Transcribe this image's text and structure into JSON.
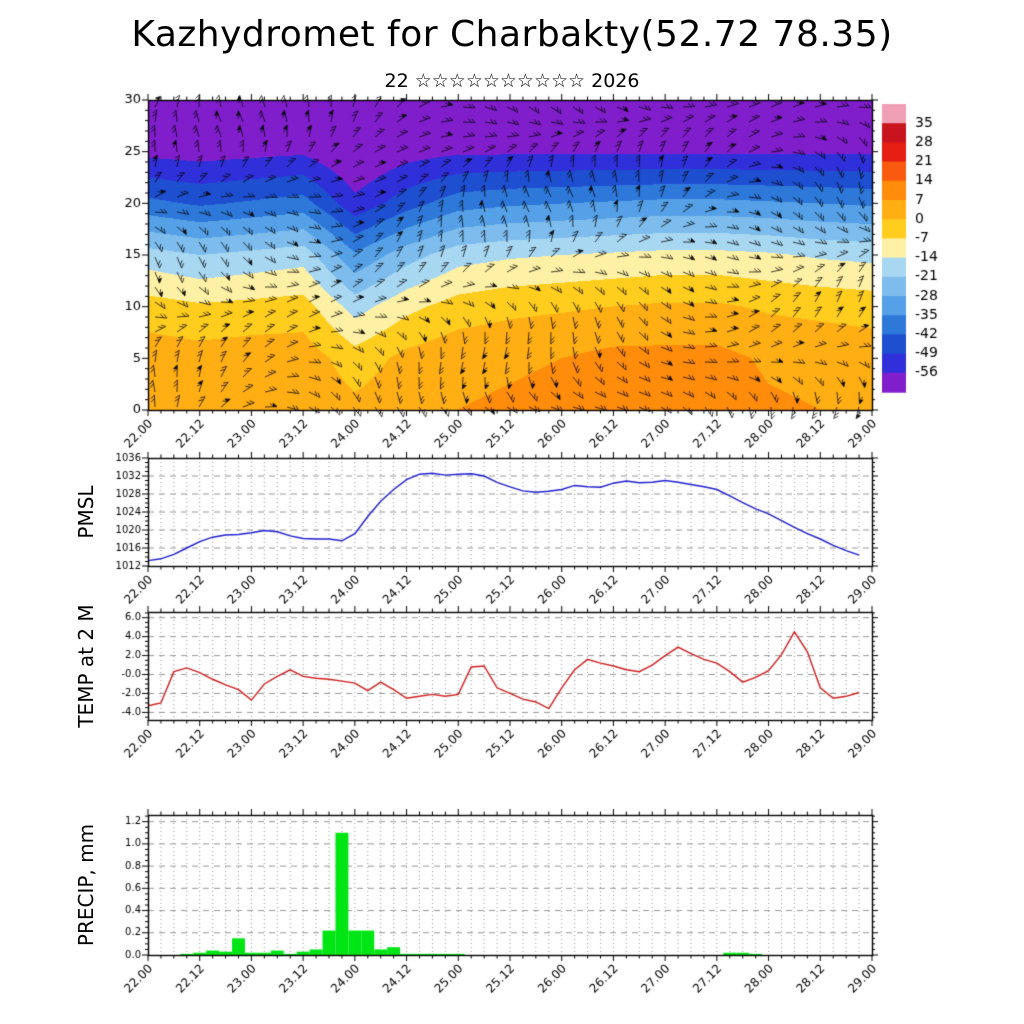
{
  "header": {
    "title": "Kazhydromet for Charbakty(52.72 78.35)",
    "subtitle": "22 ☆☆☆☆☆☆☆☆☆☆ 2026"
  },
  "x_axis": {
    "tick_labels": [
      "22.00",
      "22.12",
      "23.00",
      "23.12",
      "24.00",
      "24.12",
      "25.00",
      "25.12",
      "26.00",
      "26.12",
      "27.00",
      "27.12",
      "28.00",
      "28.12",
      "29.00"
    ],
    "tick_hours": [
      0,
      12,
      24,
      36,
      48,
      60,
      72,
      84,
      96,
      108,
      120,
      132,
      144,
      156,
      168
    ],
    "label_step_hours": 12,
    "minor_step_hours": 3,
    "total_hours": 168
  },
  "colors": {
    "background": "#ffffff",
    "axis": "#000000",
    "grid": "#8a8a8a",
    "pmsl_line": "#1f1fd0",
    "temp_line": "#cf1f1f",
    "precip_bar": "#00e614"
  },
  "chart_data": [
    {
      "type": "heatmap",
      "id": "cross_section",
      "ytick_values": [
        30,
        25,
        20,
        15,
        10,
        5,
        0
      ],
      "ytick_labels": [
        "30",
        "25",
        "20",
        "15",
        "10",
        "5",
        "0"
      ],
      "ylim": [
        0,
        30
      ],
      "grid_heights_km": [
        30,
        25,
        20,
        15,
        10,
        5,
        0
      ],
      "grid_time_hours": [
        0,
        12,
        24,
        36,
        48,
        60,
        72,
        84,
        96,
        108,
        120,
        132,
        144,
        156,
        168
      ],
      "temperature_c": [
        [
          -60,
          -61,
          -60,
          -59,
          -65,
          -61,
          -59,
          -58,
          -58,
          -58,
          -57,
          -57,
          -57,
          -57,
          -57
        ],
        [
          -58,
          -59,
          -58,
          -57,
          -64,
          -59,
          -57,
          -57,
          -57,
          -57,
          -57,
          -57,
          -57,
          -57,
          -57
        ],
        [
          -40,
          -43,
          -41,
          -39,
          -54,
          -45,
          -38,
          -36,
          -35,
          -34,
          -33,
          -33,
          -34,
          -35,
          -36
        ],
        [
          -18,
          -21,
          -19,
          -17,
          -34,
          -24,
          -17,
          -15,
          -14,
          -13,
          -12,
          -12,
          -13,
          -15,
          -16
        ],
        [
          -4,
          -6,
          -5,
          -4,
          -17,
          -9,
          -4,
          -2,
          -1,
          0,
          1,
          1,
          -1,
          -2,
          -3
        ],
        [
          4,
          3,
          4,
          4,
          -4,
          2,
          5,
          6,
          7,
          9,
          9,
          9,
          6,
          5,
          4
        ],
        [
          6,
          6,
          6,
          6,
          2,
          5,
          7,
          8,
          9,
          11,
          11,
          11,
          8,
          7,
          6
        ]
      ],
      "wind_barbs_overlay": true,
      "colorbar": {
        "boundaries": [
          35,
          28,
          21,
          14,
          7,
          0,
          -7,
          -14,
          -21,
          -28,
          -35,
          -42,
          -49,
          -56
        ],
        "labels": [
          "35",
          "28",
          "21",
          "14",
          "7",
          "0",
          "-7",
          "-14",
          "-21",
          "-28",
          "-35",
          "-42",
          "-49",
          "-56"
        ],
        "colors_warm_to_cold": [
          "#f0a0b4",
          "#c8141e",
          "#e61e14",
          "#fa5a0f",
          "#ff8c0a",
          "#ffae14",
          "#ffcd1e",
          "#fef0a5",
          "#a8d7f2",
          "#7dbcec",
          "#55a0e6",
          "#2e78da",
          "#1e4fd0",
          "#3030da",
          "#801ecc"
        ]
      }
    },
    {
      "type": "line",
      "id": "pmsl",
      "axis_title": "PMSL",
      "ylim": [
        1012,
        1036
      ],
      "ytick_values": [
        1036,
        1032,
        1028,
        1024,
        1020,
        1016,
        1012
      ],
      "ytick_labels": [
        "1036",
        "1032",
        "1028",
        "1024",
        "1020",
        "1016",
        "1012"
      ],
      "grid_y": [
        1016,
        1020,
        1024,
        1028,
        1032
      ],
      "y_minor_step": 1,
      "x_step_hours": 3,
      "values": [
        1013.2,
        1013.6,
        1014.6,
        1016.0,
        1017.4,
        1018.4,
        1018.9,
        1019.0,
        1019.4,
        1019.9,
        1019.6,
        1018.7,
        1018.1,
        1018.0,
        1018.0,
        1017.6,
        1019.2,
        1023.0,
        1026.4,
        1029.0,
        1031.2,
        1032.4,
        1032.6,
        1032.2,
        1032.4,
        1032.5,
        1032.0,
        1030.6,
        1029.6,
        1028.7,
        1028.4,
        1028.6,
        1029.0,
        1029.9,
        1029.6,
        1029.5,
        1030.4,
        1030.9,
        1030.5,
        1030.6,
        1031.0,
        1030.6,
        1030.1,
        1029.6,
        1029.0,
        1027.6,
        1026.1,
        1024.7,
        1023.6,
        1022.1,
        1020.6,
        1019.2,
        1018.0,
        1016.6,
        1015.4,
        1014.4
      ]
    },
    {
      "type": "line",
      "id": "temp2m",
      "axis_title": "TEMP at 2 M",
      "ylim": [
        -4.8,
        6.6
      ],
      "ytick_values": [
        6,
        4,
        2,
        0,
        -2,
        -4
      ],
      "ytick_labels": [
        "6.0",
        "4.0",
        "2.0",
        "-0.0",
        "-2.0",
        "-4.0"
      ],
      "grid_y": [
        6,
        4,
        2,
        0,
        -2,
        -4
      ],
      "y_minor_step": 0.5,
      "x_step_hours": 3,
      "values": [
        -3.3,
        -3.0,
        0.3,
        0.7,
        0.2,
        -0.5,
        -1.1,
        -1.6,
        -2.7,
        -1.0,
        -0.2,
        0.5,
        -0.2,
        -0.4,
        -0.5,
        -0.7,
        -0.9,
        -1.7,
        -0.8,
        -1.6,
        -2.5,
        -2.3,
        -2.1,
        -2.3,
        -2.1,
        0.8,
        0.9,
        -1.4,
        -2.0,
        -2.6,
        -2.9,
        -3.6,
        -1.4,
        0.5,
        1.6,
        1.2,
        0.9,
        0.5,
        0.3,
        1.0,
        2.0,
        2.9,
        2.2,
        1.6,
        1.2,
        0.3,
        -0.8,
        -0.3,
        0.4,
        2.1,
        4.5,
        2.4,
        -1.4,
        -2.5,
        -2.3,
        -1.9
      ]
    },
    {
      "type": "bar",
      "id": "precip",
      "axis_title": "PRECIP, mm",
      "ylim": [
        0,
        1.26
      ],
      "ytick_values": [
        1.2,
        1.0,
        0.8,
        0.6,
        0.4,
        0.2,
        0.0
      ],
      "ytick_labels": [
        "1.2",
        "1.0",
        "0.8",
        "0.6",
        "0.4",
        "0.2",
        "0.0"
      ],
      "grid_y": [
        0.2,
        0.4,
        0.6,
        0.8,
        1.0,
        1.2
      ],
      "y_minor_step": 0.05,
      "x_step_hours": 3,
      "bar_width_hours": 3,
      "values": [
        0,
        0,
        0,
        0.01,
        0.02,
        0.04,
        0.03,
        0.15,
        0.02,
        0.02,
        0.04,
        0.01,
        0.03,
        0.05,
        0.22,
        1.1,
        0.22,
        0.22,
        0.05,
        0.07,
        0.01,
        0.01,
        0.01,
        0.01,
        0.01,
        0,
        0,
        0,
        0,
        0,
        0,
        0,
        0,
        0,
        0,
        0,
        0,
        0,
        0,
        0,
        0,
        0,
        0,
        0,
        0,
        0.02,
        0.02,
        0.01,
        0,
        0,
        0,
        0,
        0,
        0,
        0,
        0
      ]
    }
  ]
}
